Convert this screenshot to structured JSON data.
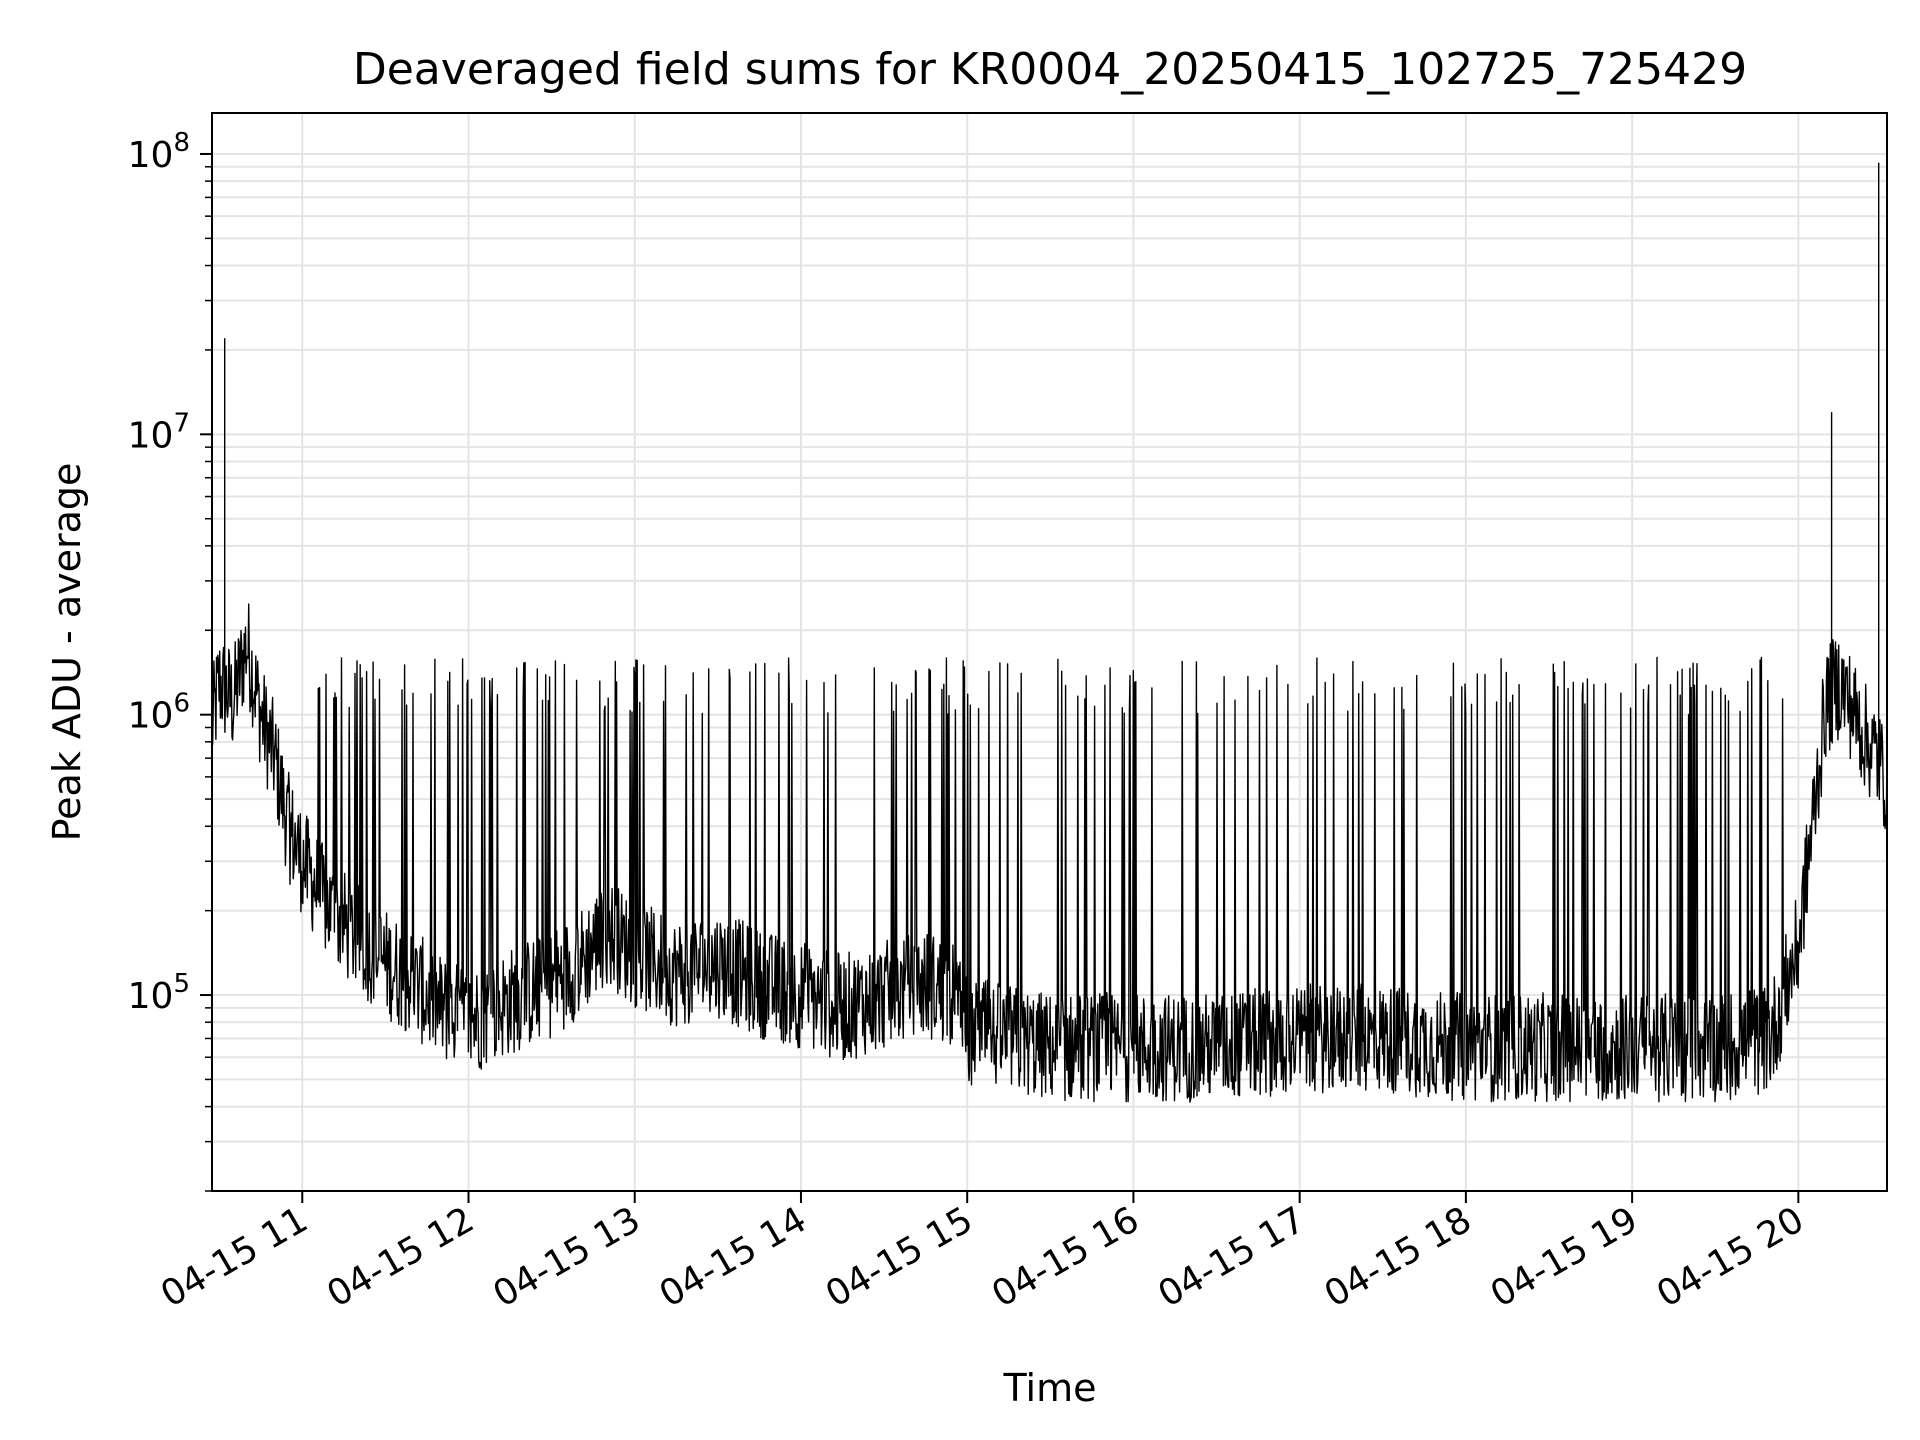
{
  "chart_data": {
    "type": "line",
    "title": "Deaveraged field sums for KR0004_20250415_102725_725429",
    "xlabel": "Time",
    "ylabel": "Peak ADU - average",
    "y_scale": "log",
    "ylim": [
      20000,
      140000000
    ],
    "xlim": [
      "2025-04-15 10:27:25",
      "2025-04-15 20:32:00"
    ],
    "x_ticks": [
      {
        "value": "2025-04-15 11:00",
        "label": "04-15 11"
      },
      {
        "value": "2025-04-15 12:00",
        "label": "04-15 12"
      },
      {
        "value": "2025-04-15 13:00",
        "label": "04-15 13"
      },
      {
        "value": "2025-04-15 14:00",
        "label": "04-15 14"
      },
      {
        "value": "2025-04-15 15:00",
        "label": "04-15 15"
      },
      {
        "value": "2025-04-15 16:00",
        "label": "04-15 16"
      },
      {
        "value": "2025-04-15 17:00",
        "label": "04-15 17"
      },
      {
        "value": "2025-04-15 18:00",
        "label": "04-15 18"
      },
      {
        "value": "2025-04-15 19:00",
        "label": "04-15 19"
      },
      {
        "value": "2025-04-15 20:00",
        "label": "04-15 20"
      }
    ],
    "y_ticks": [
      {
        "value": 100000,
        "base": "10",
        "exp": "5"
      },
      {
        "value": 1000000,
        "base": "10",
        "exp": "6"
      },
      {
        "value": 10000000,
        "base": "10",
        "exp": "7"
      },
      {
        "value": 100000000,
        "base": "10",
        "exp": "8"
      }
    ],
    "grid": true,
    "legend": "none",
    "line_color": "#000000",
    "series": [
      {
        "x": [
          "2025-04-15 10:27:25",
          "2025-04-15 10:30",
          "2025-04-15 10:33",
          "2025-04-15 10:35",
          "2025-04-15 10:40",
          "2025-04-15 10:45",
          "2025-04-15 10:50",
          "2025-04-15 10:55",
          "2025-04-15 11:00",
          "2025-04-15 11:10",
          "2025-04-15 11:20",
          "2025-04-15 11:30",
          "2025-04-15 11:40",
          "2025-04-15 11:50",
          "2025-04-15 12:00",
          "2025-04-15 12:10",
          "2025-04-15 12:20",
          "2025-04-15 12:30",
          "2025-04-15 12:40",
          "2025-04-15 12:50",
          "2025-04-15 13:00",
          "2025-04-15 13:15",
          "2025-04-15 13:30",
          "2025-04-15 13:45",
          "2025-04-15 14:00",
          "2025-04-15 14:15",
          "2025-04-15 14:30",
          "2025-04-15 14:45",
          "2025-04-15 14:55",
          "2025-04-15 15:00",
          "2025-04-15 15:30",
          "2025-04-15 16:00",
          "2025-04-15 16:30",
          "2025-04-15 17:00",
          "2025-04-15 17:30",
          "2025-04-15 18:00",
          "2025-04-15 18:30",
          "2025-04-15 19:00",
          "2025-04-15 19:30",
          "2025-04-15 19:50",
          "2025-04-15 20:00",
          "2025-04-15 20:05",
          "2025-04-15 20:10",
          "2025-04-15 20:15",
          "2025-04-15 20:20",
          "2025-04-15 20:25",
          "2025-04-15 20:29",
          "2025-04-15 20:31"
        ],
        "y": [
          900000,
          1300000,
          22000000,
          1100000,
          1800000,
          1000000,
          700000,
          400000,
          300000,
          200000,
          160000,
          130000,
          110000,
          90000,
          80000,
          90000,
          100000,
          110000,
          130000,
          170000,
          140000,
          120000,
          130000,
          110000,
          100000,
          90000,
          100000,
          110000,
          100000,
          75000,
          65000,
          65000,
          65000,
          70000,
          70000,
          65000,
          65000,
          65000,
          65000,
          70000,
          150000,
          400000,
          1100000,
          1300000,
          12000000,
          800000,
          93000000,
          600000
        ]
      }
    ],
    "spikes": [
      {
        "x": "2025-04-15 10:32",
        "y": 22000000
      },
      {
        "x": "2025-04-15 20:12",
        "y": 12000000
      },
      {
        "x": "2025-04-15 20:29",
        "y": 93000000
      }
    ]
  }
}
